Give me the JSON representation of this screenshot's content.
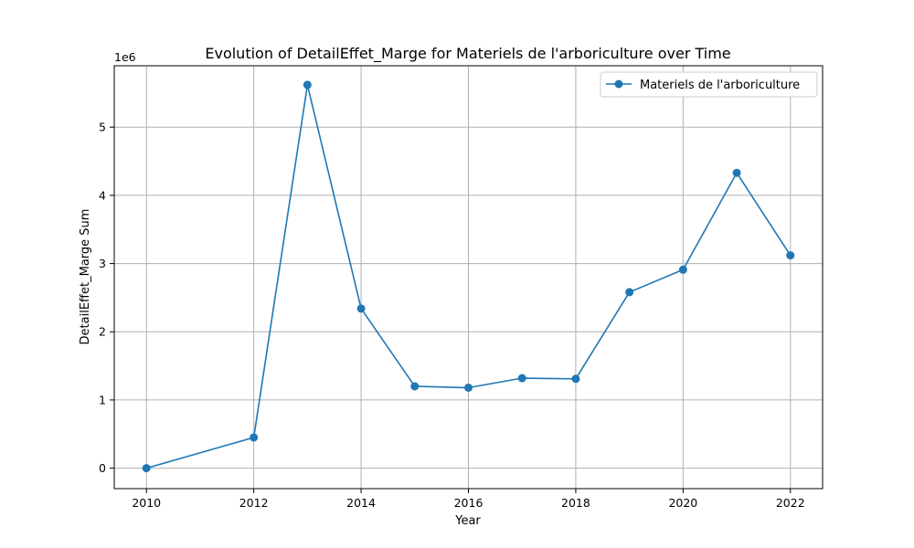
{
  "chart_data": {
    "type": "line",
    "title": "Evolution of DetailEffet_Marge for Materiels de l'arboriculture over Time",
    "xlabel": "Year",
    "ylabel": "DetailEffet_Marge Sum",
    "y_scale_label": "1e6",
    "xlim": [
      2009.4,
      2022.6
    ],
    "ylim": [
      -300000,
      5900000
    ],
    "x_ticks": [
      "2010",
      "2012",
      "2014",
      "2016",
      "2018",
      "2020",
      "2022"
    ],
    "x_tick_values": [
      2010,
      2012,
      2014,
      2016,
      2018,
      2020,
      2022
    ],
    "y_ticks": [
      "0",
      "1",
      "2",
      "3",
      "4",
      "5"
    ],
    "y_tick_values": [
      0,
      1000000,
      2000000,
      3000000,
      4000000,
      5000000
    ],
    "grid": true,
    "legend_position": "top-right",
    "series": [
      {
        "name": "Materiels de l'arboriculture",
        "color": "#1f77b4",
        "marker": "circle",
        "x": [
          2010,
          2012,
          2013,
          2014,
          2015,
          2016,
          2017,
          2018,
          2019,
          2020,
          2021,
          2022
        ],
        "y": [
          0,
          450000,
          5620000,
          2340000,
          1200000,
          1180000,
          1320000,
          1310000,
          2580000,
          2910000,
          4330000,
          3120000
        ]
      }
    ]
  }
}
